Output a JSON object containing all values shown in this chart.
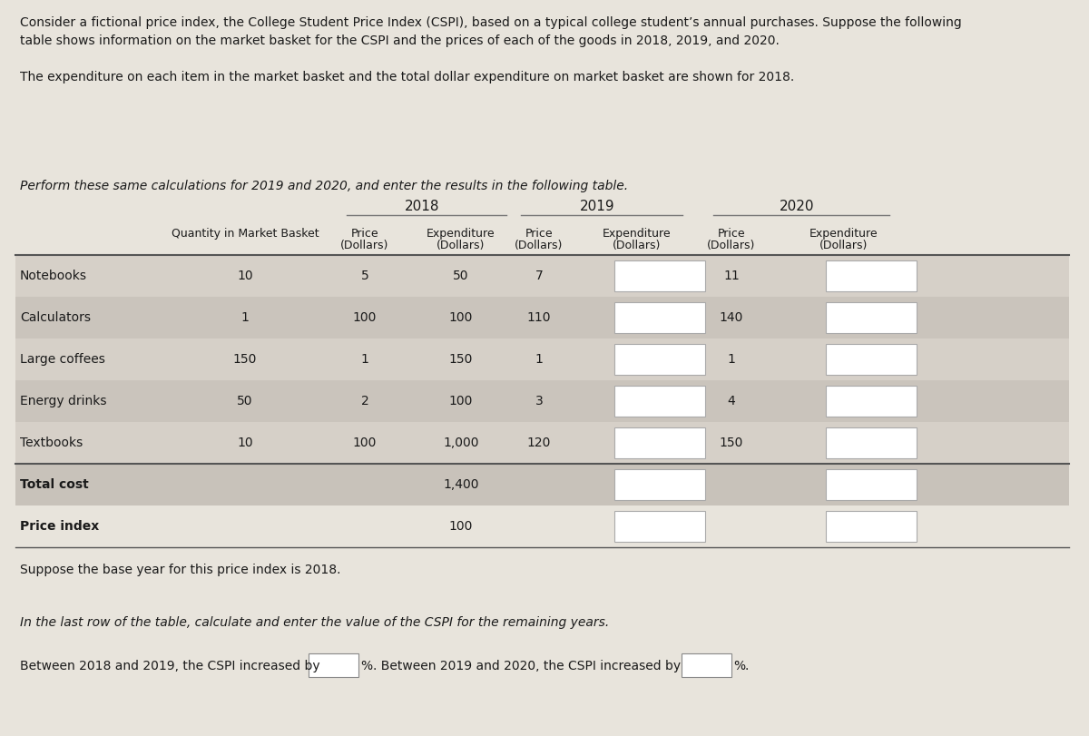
{
  "bg_color": "#e8e4dc",
  "text_color": "#1a1a1a",
  "para1_line1": "Consider a fictional price index, the College Student Price Index (CSPI), based on a typical college student’s annual purchases. Suppose the following",
  "para1_line2": "table shows information on the market basket for the CSPI and the prices of each of the goods in 2018, 2019, and 2020.",
  "para2": "The expenditure on each item in the market basket and the total dollar expenditure on market basket are shown for 2018.",
  "para3": "Perform these same calculations for 2019 and 2020, and enter the results in the following table.",
  "para4": "Suppose the base year for this price index is 2018.",
  "para5": "In the last row of the table, calculate and enter the value of the CSPI for the remaining years.",
  "para6_prefix": "Between 2018 and 2019, the CSPI increased by",
  "para6_middle": ". Between 2019 and 2020, the CSPI increased by",
  "para6_end": ".",
  "pct_label": "%",
  "row_labels": [
    "Notebooks",
    "Calculators",
    "Large coffees",
    "Energy drinks",
    "Textbooks",
    "Total cost",
    "Price index"
  ],
  "quantities": [
    "10",
    "1",
    "150",
    "50",
    "10",
    "",
    ""
  ],
  "price_2018": [
    "5",
    "100",
    "1",
    "2",
    "100",
    "",
    ""
  ],
  "exp_2018": [
    "50",
    "100",
    "150",
    "100",
    "1,000",
    "1,400",
    "100"
  ],
  "price_2019": [
    "7",
    "110",
    "1",
    "3",
    "120",
    "",
    ""
  ],
  "price_2020": [
    "11",
    "140",
    "1",
    "4",
    "150",
    "",
    ""
  ],
  "year_headers": [
    "2018",
    "2019",
    "2020"
  ],
  "col_header_qty": "Quantity in Market Basket",
  "col_header_price": "Price",
  "col_header_exp": "Expenditure",
  "col_header_dollars": "(Dollars)",
  "shade_odd": "#d6d0c8",
  "shade_even": "#cac4bc",
  "shade_total": "#c8c2ba",
  "line_color": "#888888",
  "heavy_line_color": "#555555"
}
